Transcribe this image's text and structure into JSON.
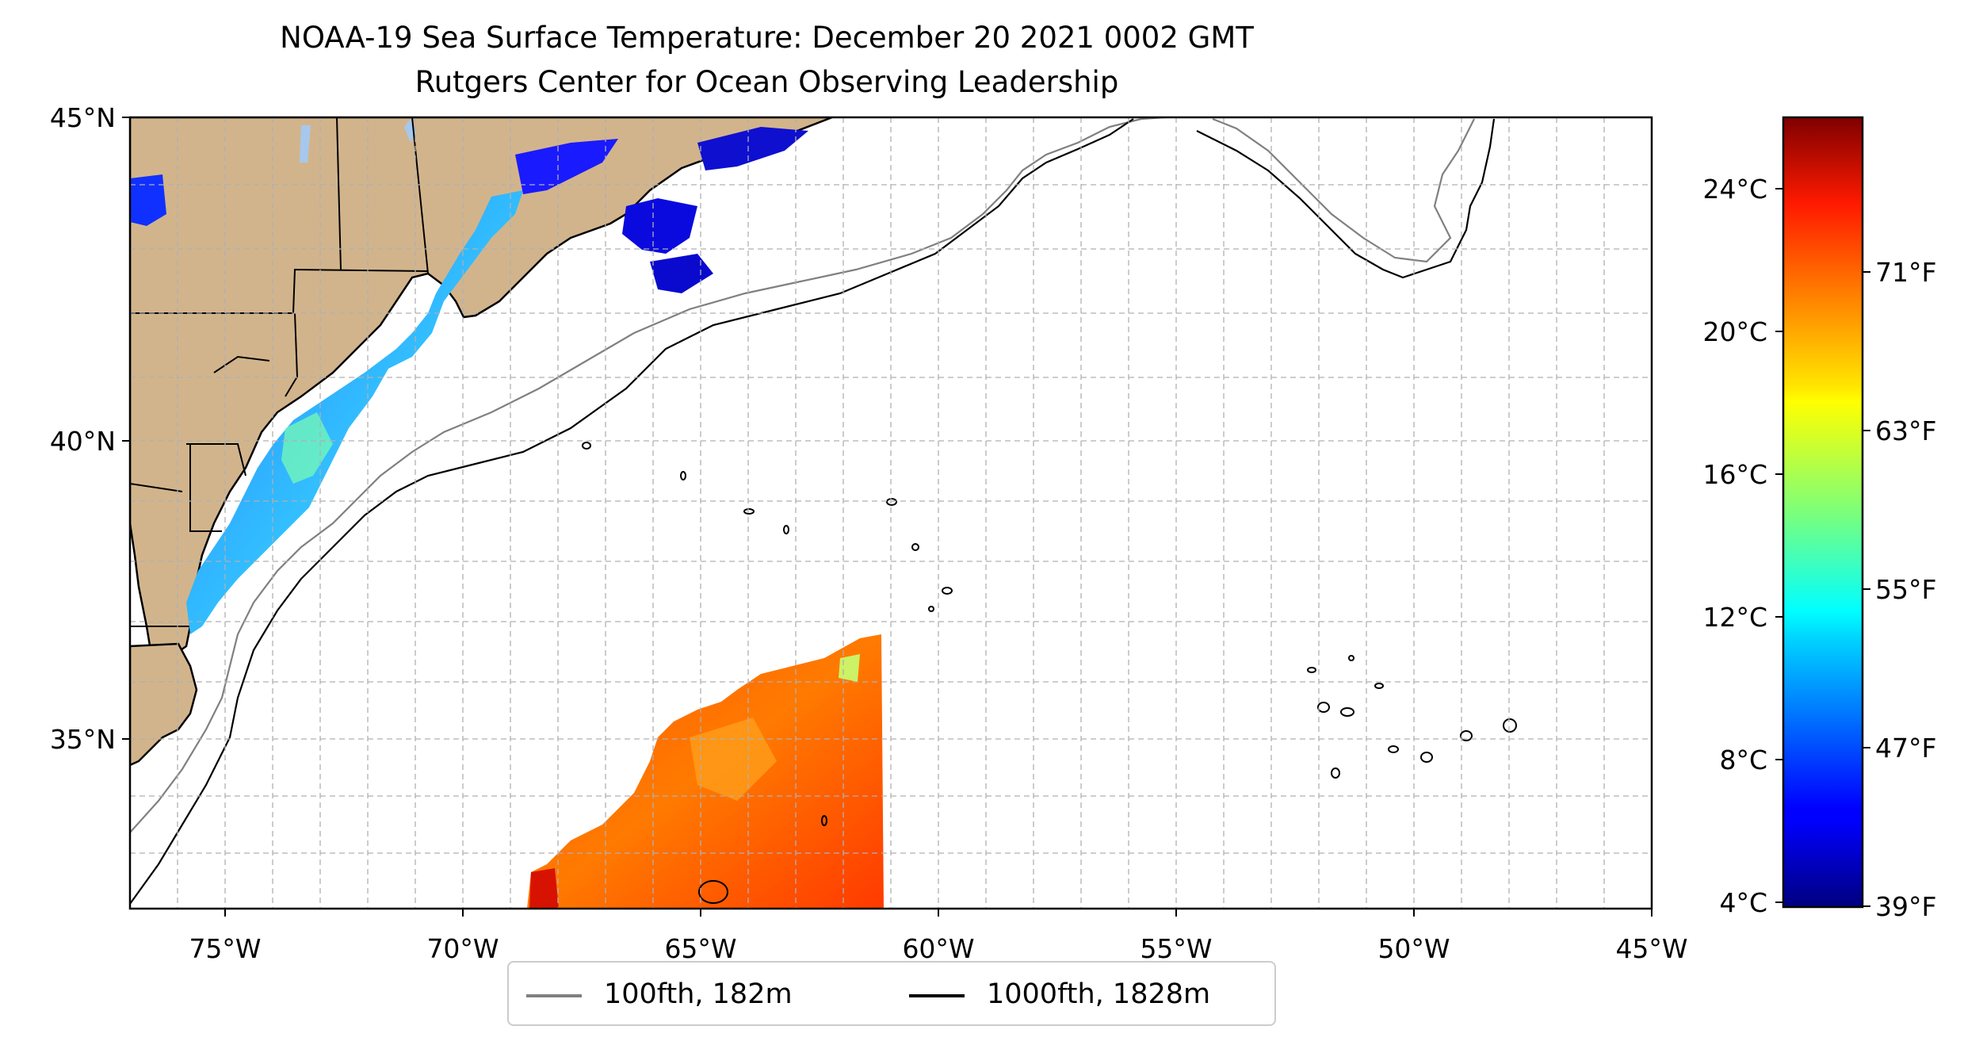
{
  "title": "NOAA-19 Sea Surface Temperature: December 20 2021 0002 GMT",
  "subtitle": "Rutgers Center for Ocean Observing Leadership",
  "map": {
    "lon_range": [
      -77,
      -45
    ],
    "lat_range": [
      32.2,
      45
    ],
    "lon_ticks": [
      "75°W",
      "70°W",
      "65°W",
      "60°W",
      "55°W",
      "50°W",
      "45°W"
    ],
    "lat_ticks": [
      "45°N",
      "40°N",
      "35°N"
    ],
    "grid": true,
    "land_color": "#d2b48c",
    "lakes_color": "#a6c8ee"
  },
  "colorbar": {
    "colormap": "jet",
    "celsius_ticks": [
      "24°C",
      "20°C",
      "16°C",
      "12°C",
      "8°C",
      "4°C"
    ],
    "fahrenheit_ticks": [
      "71°F",
      "63°F",
      "55°F",
      "47°F",
      "39°F"
    ]
  },
  "legend": {
    "items": [
      {
        "label": "100fth, 182m",
        "color": "#808080"
      },
      {
        "label": "1000fth, 1828m",
        "color": "#000000"
      }
    ]
  }
}
